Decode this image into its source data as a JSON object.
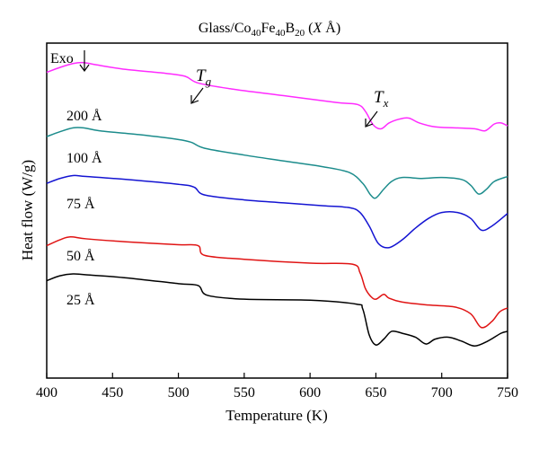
{
  "chart_data": {
    "type": "line",
    "title": "Glass/Co40Fe40B20 (X Å)",
    "title_parts": {
      "prefix": "Glass/Co",
      "sub1": "40",
      "mid1": "Fe",
      "sub2": "40",
      "mid2": "B",
      "sub3": "20",
      "suffix_var": "X",
      "suffix_unit": "Å"
    },
    "xlabel": "Temperature (K)",
    "ylabel": "Heat flow (W/g)",
    "xlim": [
      400,
      750
    ],
    "xticks": [
      400,
      450,
      500,
      550,
      600,
      650,
      700,
      750
    ],
    "y_tick_labels": false,
    "grid": false,
    "annotations": {
      "exo": "Exo",
      "tg_main": "T",
      "tg_sub": "g",
      "tx_main": "T",
      "tx_sub": "x"
    },
    "series": [
      {
        "name": "200 Å",
        "color": "#ff2bff",
        "points": [
          [
            400,
            -0.5
          ],
          [
            410,
            -0.25
          ],
          [
            420,
            -0.05
          ],
          [
            428,
            0.0
          ],
          [
            438,
            -0.12
          ],
          [
            460,
            -0.35
          ],
          [
            490,
            -0.55
          ],
          [
            505,
            -0.7
          ],
          [
            515,
            -1.05
          ],
          [
            540,
            -1.35
          ],
          [
            580,
            -1.7
          ],
          [
            620,
            -2.05
          ],
          [
            636,
            -2.15
          ],
          [
            642,
            -2.5
          ],
          [
            648,
            -3.2
          ],
          [
            654,
            -3.4
          ],
          [
            660,
            -3.1
          ],
          [
            668,
            -2.9
          ],
          [
            675,
            -2.85
          ],
          [
            683,
            -3.1
          ],
          [
            695,
            -3.3
          ],
          [
            710,
            -3.35
          ],
          [
            725,
            -3.4
          ],
          [
            733,
            -3.5
          ],
          [
            740,
            -3.15
          ],
          [
            745,
            -3.1
          ],
          [
            750,
            -3.25
          ]
        ]
      },
      {
        "name": "100 Å",
        "color": "#1c8c8c",
        "points": [
          [
            400,
            -3.8
          ],
          [
            410,
            -3.55
          ],
          [
            420,
            -3.35
          ],
          [
            428,
            -3.35
          ],
          [
            440,
            -3.5
          ],
          [
            470,
            -3.7
          ],
          [
            500,
            -3.95
          ],
          [
            510,
            -4.1
          ],
          [
            520,
            -4.4
          ],
          [
            550,
            -4.75
          ],
          [
            580,
            -5.05
          ],
          [
            610,
            -5.35
          ],
          [
            630,
            -5.65
          ],
          [
            640,
            -6.2
          ],
          [
            646,
            -6.8
          ],
          [
            650,
            -6.95
          ],
          [
            656,
            -6.5
          ],
          [
            662,
            -6.1
          ],
          [
            670,
            -5.9
          ],
          [
            685,
            -5.95
          ],
          [
            700,
            -5.9
          ],
          [
            715,
            -6.0
          ],
          [
            722,
            -6.3
          ],
          [
            728,
            -6.75
          ],
          [
            734,
            -6.5
          ],
          [
            740,
            -6.1
          ],
          [
            750,
            -5.85
          ]
        ]
      },
      {
        "name": "75 Å",
        "color": "#1414d2",
        "points": [
          [
            400,
            -6.2
          ],
          [
            410,
            -5.95
          ],
          [
            420,
            -5.8
          ],
          [
            430,
            -5.85
          ],
          [
            460,
            -6.0
          ],
          [
            500,
            -6.25
          ],
          [
            512,
            -6.4
          ],
          [
            520,
            -6.8
          ],
          [
            550,
            -7.05
          ],
          [
            580,
            -7.2
          ],
          [
            610,
            -7.35
          ],
          [
            630,
            -7.45
          ],
          [
            638,
            -7.7
          ],
          [
            645,
            -8.4
          ],
          [
            652,
            -9.3
          ],
          [
            660,
            -9.5
          ],
          [
            670,
            -9.1
          ],
          [
            680,
            -8.5
          ],
          [
            690,
            -8.0
          ],
          [
            700,
            -7.7
          ],
          [
            712,
            -7.7
          ],
          [
            722,
            -8.0
          ],
          [
            730,
            -8.6
          ],
          [
            738,
            -8.4
          ],
          [
            750,
            -7.75
          ]
        ]
      },
      {
        "name": "50 Å",
        "color": "#e01414",
        "points": [
          [
            400,
            -9.4
          ],
          [
            410,
            -9.1
          ],
          [
            418,
            -8.95
          ],
          [
            430,
            -9.05
          ],
          [
            460,
            -9.2
          ],
          [
            500,
            -9.35
          ],
          [
            515,
            -9.4
          ],
          [
            520,
            -9.9
          ],
          [
            550,
            -10.1
          ],
          [
            600,
            -10.3
          ],
          [
            632,
            -10.35
          ],
          [
            638,
            -10.8
          ],
          [
            642,
            -11.6
          ],
          [
            646,
            -12.0
          ],
          [
            650,
            -12.15
          ],
          [
            656,
            -11.9
          ],
          [
            660,
            -12.1
          ],
          [
            670,
            -12.3
          ],
          [
            690,
            -12.45
          ],
          [
            710,
            -12.55
          ],
          [
            722,
            -12.9
          ],
          [
            730,
            -13.6
          ],
          [
            738,
            -13.3
          ],
          [
            744,
            -12.8
          ],
          [
            750,
            -12.6
          ]
        ]
      },
      {
        "name": "25 Å",
        "color": "#000000",
        "points": [
          [
            400,
            -11.2
          ],
          [
            410,
            -10.95
          ],
          [
            420,
            -10.85
          ],
          [
            430,
            -10.9
          ],
          [
            460,
            -11.05
          ],
          [
            500,
            -11.35
          ],
          [
            515,
            -11.45
          ],
          [
            522,
            -11.95
          ],
          [
            550,
            -12.15
          ],
          [
            600,
            -12.2
          ],
          [
            635,
            -12.4
          ],
          [
            640,
            -12.65
          ],
          [
            645,
            -14.0
          ],
          [
            650,
            -14.5
          ],
          [
            656,
            -14.2
          ],
          [
            662,
            -13.8
          ],
          [
            670,
            -13.9
          ],
          [
            680,
            -14.1
          ],
          [
            688,
            -14.45
          ],
          [
            695,
            -14.2
          ],
          [
            705,
            -14.1
          ],
          [
            715,
            -14.3
          ],
          [
            725,
            -14.55
          ],
          [
            735,
            -14.3
          ],
          [
            745,
            -13.9
          ],
          [
            750,
            -13.8
          ]
        ]
      }
    ],
    "ylim": [
      -16.2,
      1.0
    ]
  }
}
